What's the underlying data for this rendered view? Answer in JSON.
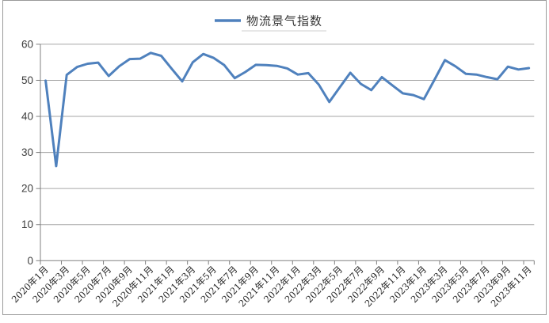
{
  "chart_data": {
    "type": "line",
    "title": "",
    "legend": "物流景气指数",
    "legend_position": "top-center",
    "xlabel": "",
    "ylabel": "",
    "ylim": [
      0,
      60
    ],
    "yticks": [
      0,
      10,
      20,
      30,
      40,
      50,
      60
    ],
    "x_label_interval": 2,
    "grid": true,
    "categories": [
      "2020年1月",
      "2020年2月",
      "2020年3月",
      "2020年4月",
      "2020年5月",
      "2020年6月",
      "2020年7月",
      "2020年8月",
      "2020年9月",
      "2020年10月",
      "2020年11月",
      "2020年12月",
      "2021年1月",
      "2021年2月",
      "2021年3月",
      "2021年4月",
      "2021年5月",
      "2021年6月",
      "2021年7月",
      "2021年8月",
      "2021年9月",
      "2021年10月",
      "2021年11月",
      "2021年12月",
      "2022年1月",
      "2022年2月",
      "2022年3月",
      "2022年4月",
      "2022年5月",
      "2022年6月",
      "2022年7月",
      "2022年8月",
      "2022年9月",
      "2022年10月",
      "2022年11月",
      "2022年12月",
      "2023年1月",
      "2023年2月",
      "2023年3月",
      "2023年4月",
      "2023年5月",
      "2023年6月",
      "2023年7月",
      "2023年8月",
      "2023年9月",
      "2023年10月",
      "2023年11月"
    ],
    "values": [
      49.9,
      26.2,
      51.5,
      53.7,
      54.6,
      54.9,
      51.2,
      53.9,
      55.9,
      56.0,
      57.6,
      56.8,
      53.2,
      49.7,
      55.0,
      57.3,
      56.2,
      54.2,
      50.6,
      52.3,
      54.3,
      54.2,
      54.0,
      53.3,
      51.6,
      52.0,
      48.8,
      44.0,
      48.1,
      52.1,
      49.0,
      47.3,
      50.9,
      48.6,
      46.4,
      45.9,
      44.8,
      50.1,
      55.6,
      53.9,
      51.8,
      51.6,
      50.9,
      50.3,
      53.8,
      53.0,
      53.4
    ],
    "colors": {
      "line": "#4F81BD",
      "grid": "#A6A6A6",
      "axis": "#808080",
      "tick_text": "#3f3f3f",
      "frame_border": "#9A9A9A",
      "background": "#FFFFFF",
      "legend_underline": "#CFCFCF"
    }
  }
}
